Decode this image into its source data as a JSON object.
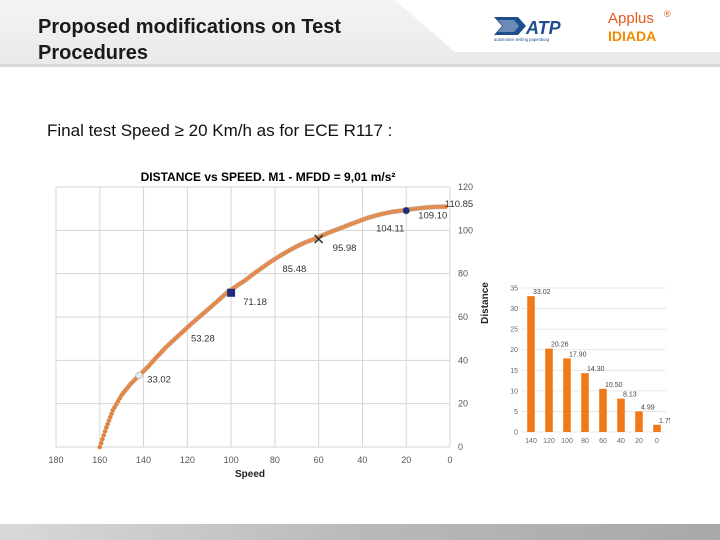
{
  "header": {
    "title_line1": "Proposed modifications on Test",
    "title_line2": "Procedures",
    "atp_logo_text": "ATP",
    "atp_tagline": "automotive testing papenburg",
    "applus_text": "Applus",
    "applus_mark": "®",
    "idiada_text": "IDIADA"
  },
  "subtitle": "Final test Speed ≥ 20 Km/h as for ECE R117 :",
  "colors": {
    "curve": "#e67e36",
    "marker_dark": "#1f2a7a",
    "marker_cross": "#333333",
    "bar": "#f07a1a",
    "grid": "#d6d6d6",
    "title": "#1f3864"
  },
  "chart_data": [
    {
      "type": "scatter",
      "title": "DISTANCE vs SPEED. M1 - MFDD = 9,01 m/s²",
      "xlabel": "Speed",
      "ylabel": "Distance",
      "xlim": [
        180,
        0
      ],
      "ylim": [
        0,
        120
      ],
      "x_reversed": true,
      "y_axis_position": "right",
      "xticks": [
        180,
        160,
        140,
        120,
        100,
        80,
        60,
        40,
        20,
        0
      ],
      "yticks": [
        0,
        20,
        40,
        60,
        80,
        100,
        120
      ],
      "grid": true,
      "series": [
        {
          "x": [
            160,
            157,
            154,
            150,
            146,
            142,
            138,
            134,
            130,
            126,
            122,
            118,
            114,
            110,
            106,
            102,
            98,
            94,
            90,
            86,
            82,
            78,
            74,
            70,
            66,
            62,
            58,
            54,
            50,
            46,
            42,
            38,
            34,
            30,
            26,
            22,
            18,
            14,
            10,
            6,
            2
          ],
          "y": [
            0,
            9,
            17,
            24,
            29,
            33.02,
            37,
            41.5,
            45.8,
            49.6,
            53.28,
            57,
            60.5,
            64,
            67.5,
            71.18,
            74,
            76.6,
            79.7,
            82.6,
            85.48,
            88,
            90.4,
            92.6,
            94.5,
            95.98,
            97.8,
            99.5,
            101,
            102.6,
            104.11,
            105.6,
            106.8,
            107.8,
            108.6,
            109.1,
            109.7,
            110.2,
            110.6,
            110.85,
            110.9
          ]
        }
      ],
      "markers": [
        {
          "x": 142,
          "y": 33.02,
          "shape": "dot"
        },
        {
          "x": 100,
          "y": 71.18,
          "shape": "square"
        },
        {
          "x": 60,
          "y": 95.98,
          "shape": "cross"
        },
        {
          "x": 20,
          "y": 109.1,
          "shape": "dot"
        }
      ],
      "annotations": [
        {
          "text": "33.02",
          "x": 142,
          "y": 33.02
        },
        {
          "text": "53.28",
          "x": 122,
          "y": 53.28
        },
        {
          "text": "71.18",
          "x": 100,
          "y": 71.18
        },
        {
          "text": "85.48",
          "x": 82,
          "y": 85.48
        },
        {
          "text": "95.98",
          "x": 60,
          "y": 95.98
        },
        {
          "text": "104.11",
          "x": 42,
          "y": 104.11
        },
        {
          "text": "109.10",
          "x": 20,
          "y": 109.1
        },
        {
          "text": "110.85",
          "x": 6,
          "y": 110.85
        }
      ]
    },
    {
      "type": "bar",
      "categories": [
        "140",
        "120",
        "100",
        "80",
        "60",
        "40",
        "20",
        "0"
      ],
      "values": [
        33.02,
        20.26,
        17.9,
        14.3,
        10.5,
        8.13,
        4.99,
        1.75
      ],
      "value_labels": [
        "33.02",
        "20.26",
        "17.90",
        "14.30",
        "10.50",
        "8.13",
        "4.99",
        "1.75"
      ],
      "ylim": [
        0,
        35
      ],
      "yticks": [
        0,
        5,
        10,
        15,
        20,
        25,
        30,
        35
      ],
      "grid": true
    }
  ]
}
